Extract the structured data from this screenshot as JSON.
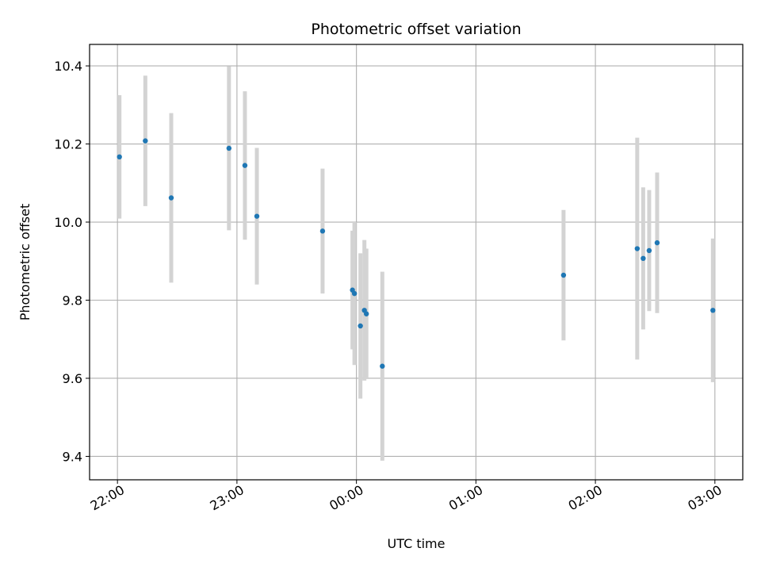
{
  "chart_data": {
    "type": "scatter",
    "title": "Photometric offset variation",
    "xlabel": "UTC time",
    "ylabel": "Photometric offset",
    "xlim": [
      "21:46",
      "03:14"
    ],
    "ylim": [
      9.34,
      10.455
    ],
    "grid": true,
    "x_ticks": [
      "22:00",
      "23:00",
      "00:00",
      "01:00",
      "02:00",
      "03:00"
    ],
    "y_ticks": [
      9.4,
      9.6,
      9.8,
      10.0,
      10.2,
      10.4
    ],
    "y_tick_labels": [
      "9.4",
      "9.6",
      "9.8",
      "10.0",
      "10.2",
      "10.4"
    ],
    "colors": {
      "points": "#1f77b4",
      "errorbars": "#d3d3d3",
      "grid": "#b0b0b0"
    },
    "points": [
      {
        "x": "22:01",
        "y": 10.167,
        "err": 0.158
      },
      {
        "x": "22:14",
        "y": 10.208,
        "err": 0.167
      },
      {
        "x": "22:27",
        "y": 10.062,
        "err": 0.217
      },
      {
        "x": "22:56",
        "y": 10.189,
        "err": 0.21
      },
      {
        "x": "23:04",
        "y": 10.145,
        "err": 0.19
      },
      {
        "x": "23:10",
        "y": 10.015,
        "err": 0.175
      },
      {
        "x": "23:43",
        "y": 9.977,
        "err": 0.16
      },
      {
        "x": "23:58",
        "y": 9.826,
        "err": 0.152
      },
      {
        "x": "23:59",
        "y": 9.817,
        "err": 0.183
      },
      {
        "x": "00:02",
        "y": 9.734,
        "err": 0.186
      },
      {
        "x": "00:04",
        "y": 9.774,
        "err": 0.18
      },
      {
        "x": "00:05",
        "y": 9.765,
        "err": 0.167
      },
      {
        "x": "00:13",
        "y": 9.631,
        "err": 0.242
      },
      {
        "x": "01:44",
        "y": 9.864,
        "err": 0.167
      },
      {
        "x": "02:21",
        "y": 9.932,
        "err": 0.284
      },
      {
        "x": "02:24",
        "y": 9.907,
        "err": 0.182
      },
      {
        "x": "02:27",
        "y": 9.927,
        "err": 0.155
      },
      {
        "x": "02:31",
        "y": 9.947,
        "err": 0.18
      },
      {
        "x": "02:59",
        "y": 9.774,
        "err": 0.184
      }
    ]
  }
}
